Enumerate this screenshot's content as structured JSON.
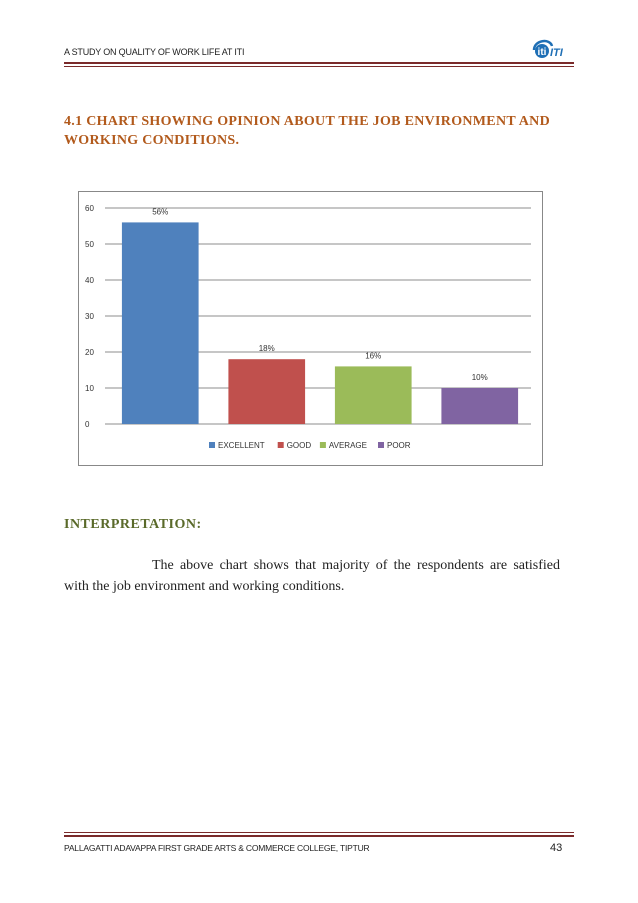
{
  "header": {
    "title": "A STUDY ON QUALITY OF WORK LIFE AT ITI",
    "logo_text": "iti",
    "logo_color": "#1f6fb5"
  },
  "section": {
    "title": "4.1 CHART SHOWING OPINION ABOUT THE JOB ENVIRONMENT AND WORKING CONDITIONS."
  },
  "chart_data": {
    "type": "bar",
    "categories": [
      "EXCELLENT",
      "GOOD",
      "AVERAGE",
      "POOR"
    ],
    "values": [
      56,
      18,
      16,
      10
    ],
    "data_labels": [
      "56%",
      "18%",
      "16%",
      "10%"
    ],
    "colors": [
      "#4f81bd",
      "#c0504d",
      "#9bbb59",
      "#8064a2"
    ],
    "ylim": [
      0,
      60
    ],
    "yticks": [
      0,
      10,
      20,
      30,
      40,
      50,
      60
    ],
    "grid": true,
    "legend": "bottom",
    "title": "",
    "xlabel": "",
    "ylabel": ""
  },
  "interpretation": {
    "heading": "INTERPRETATION:",
    "text": "The above chart shows that majority of the respondents are satisfied with the job environment and working conditions."
  },
  "footer": {
    "text": "PALLAGATTI ADAVAPPA FIRST GRADE ARTS & COMMERCE COLLEGE, TIPTUR",
    "page_number": "43"
  }
}
